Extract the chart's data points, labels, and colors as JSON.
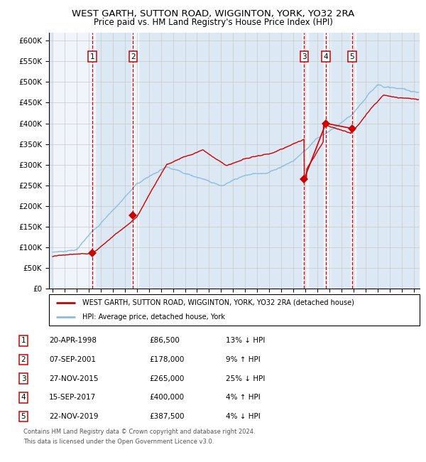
{
  "title_line1": "WEST GARTH, SUTTON ROAD, WIGGINTON, YORK, YO32 2RA",
  "title_line2": "Price paid vs. HM Land Registry's House Price Index (HPI)",
  "sale_prices": [
    86500,
    178000,
    265000,
    400000,
    387500
  ],
  "sale_years": [
    1998.304,
    2001.685,
    2015.906,
    2017.706,
    2019.894
  ],
  "sale_labels": [
    "1",
    "2",
    "3",
    "4",
    "5"
  ],
  "sale_info": [
    {
      "num": "1",
      "date": "20-APR-1998",
      "price": "£86,500",
      "pct": "13%",
      "dir": "↓",
      "vs": "HPI"
    },
    {
      "num": "2",
      "date": "07-SEP-2001",
      "price": "£178,000",
      "pct": "9%",
      "dir": "↑",
      "vs": "HPI"
    },
    {
      "num": "3",
      "date": "27-NOV-2015",
      "price": "£265,000",
      "pct": "25%",
      "dir": "↓",
      "vs": "HPI"
    },
    {
      "num": "4",
      "date": "15-SEP-2017",
      "price": "£400,000",
      "pct": "4%",
      "dir": "↑",
      "vs": "HPI"
    },
    {
      "num": "5",
      "date": "22-NOV-2019",
      "price": "£387,500",
      "pct": "4%",
      "dir": "↓",
      "vs": "HPI"
    }
  ],
  "hpi_color": "#8bbcdb",
  "sale_color": "#cc0000",
  "background_shade": "#dce9f5",
  "grid_color": "#c8c8c8",
  "ylim": [
    0,
    620000
  ],
  "ytick_step": 50000,
  "xmin": 1994.7,
  "xmax": 2025.5,
  "legend_line1": "WEST GARTH, SUTTON ROAD, WIGGINTON, YORK, YO32 2RA (detached house)",
  "legend_line2": "HPI: Average price, detached house, York",
  "footnote_line1": "Contains HM Land Registry data © Crown copyright and database right 2024.",
  "footnote_line2": "This data is licensed under the Open Government Licence v3.0."
}
